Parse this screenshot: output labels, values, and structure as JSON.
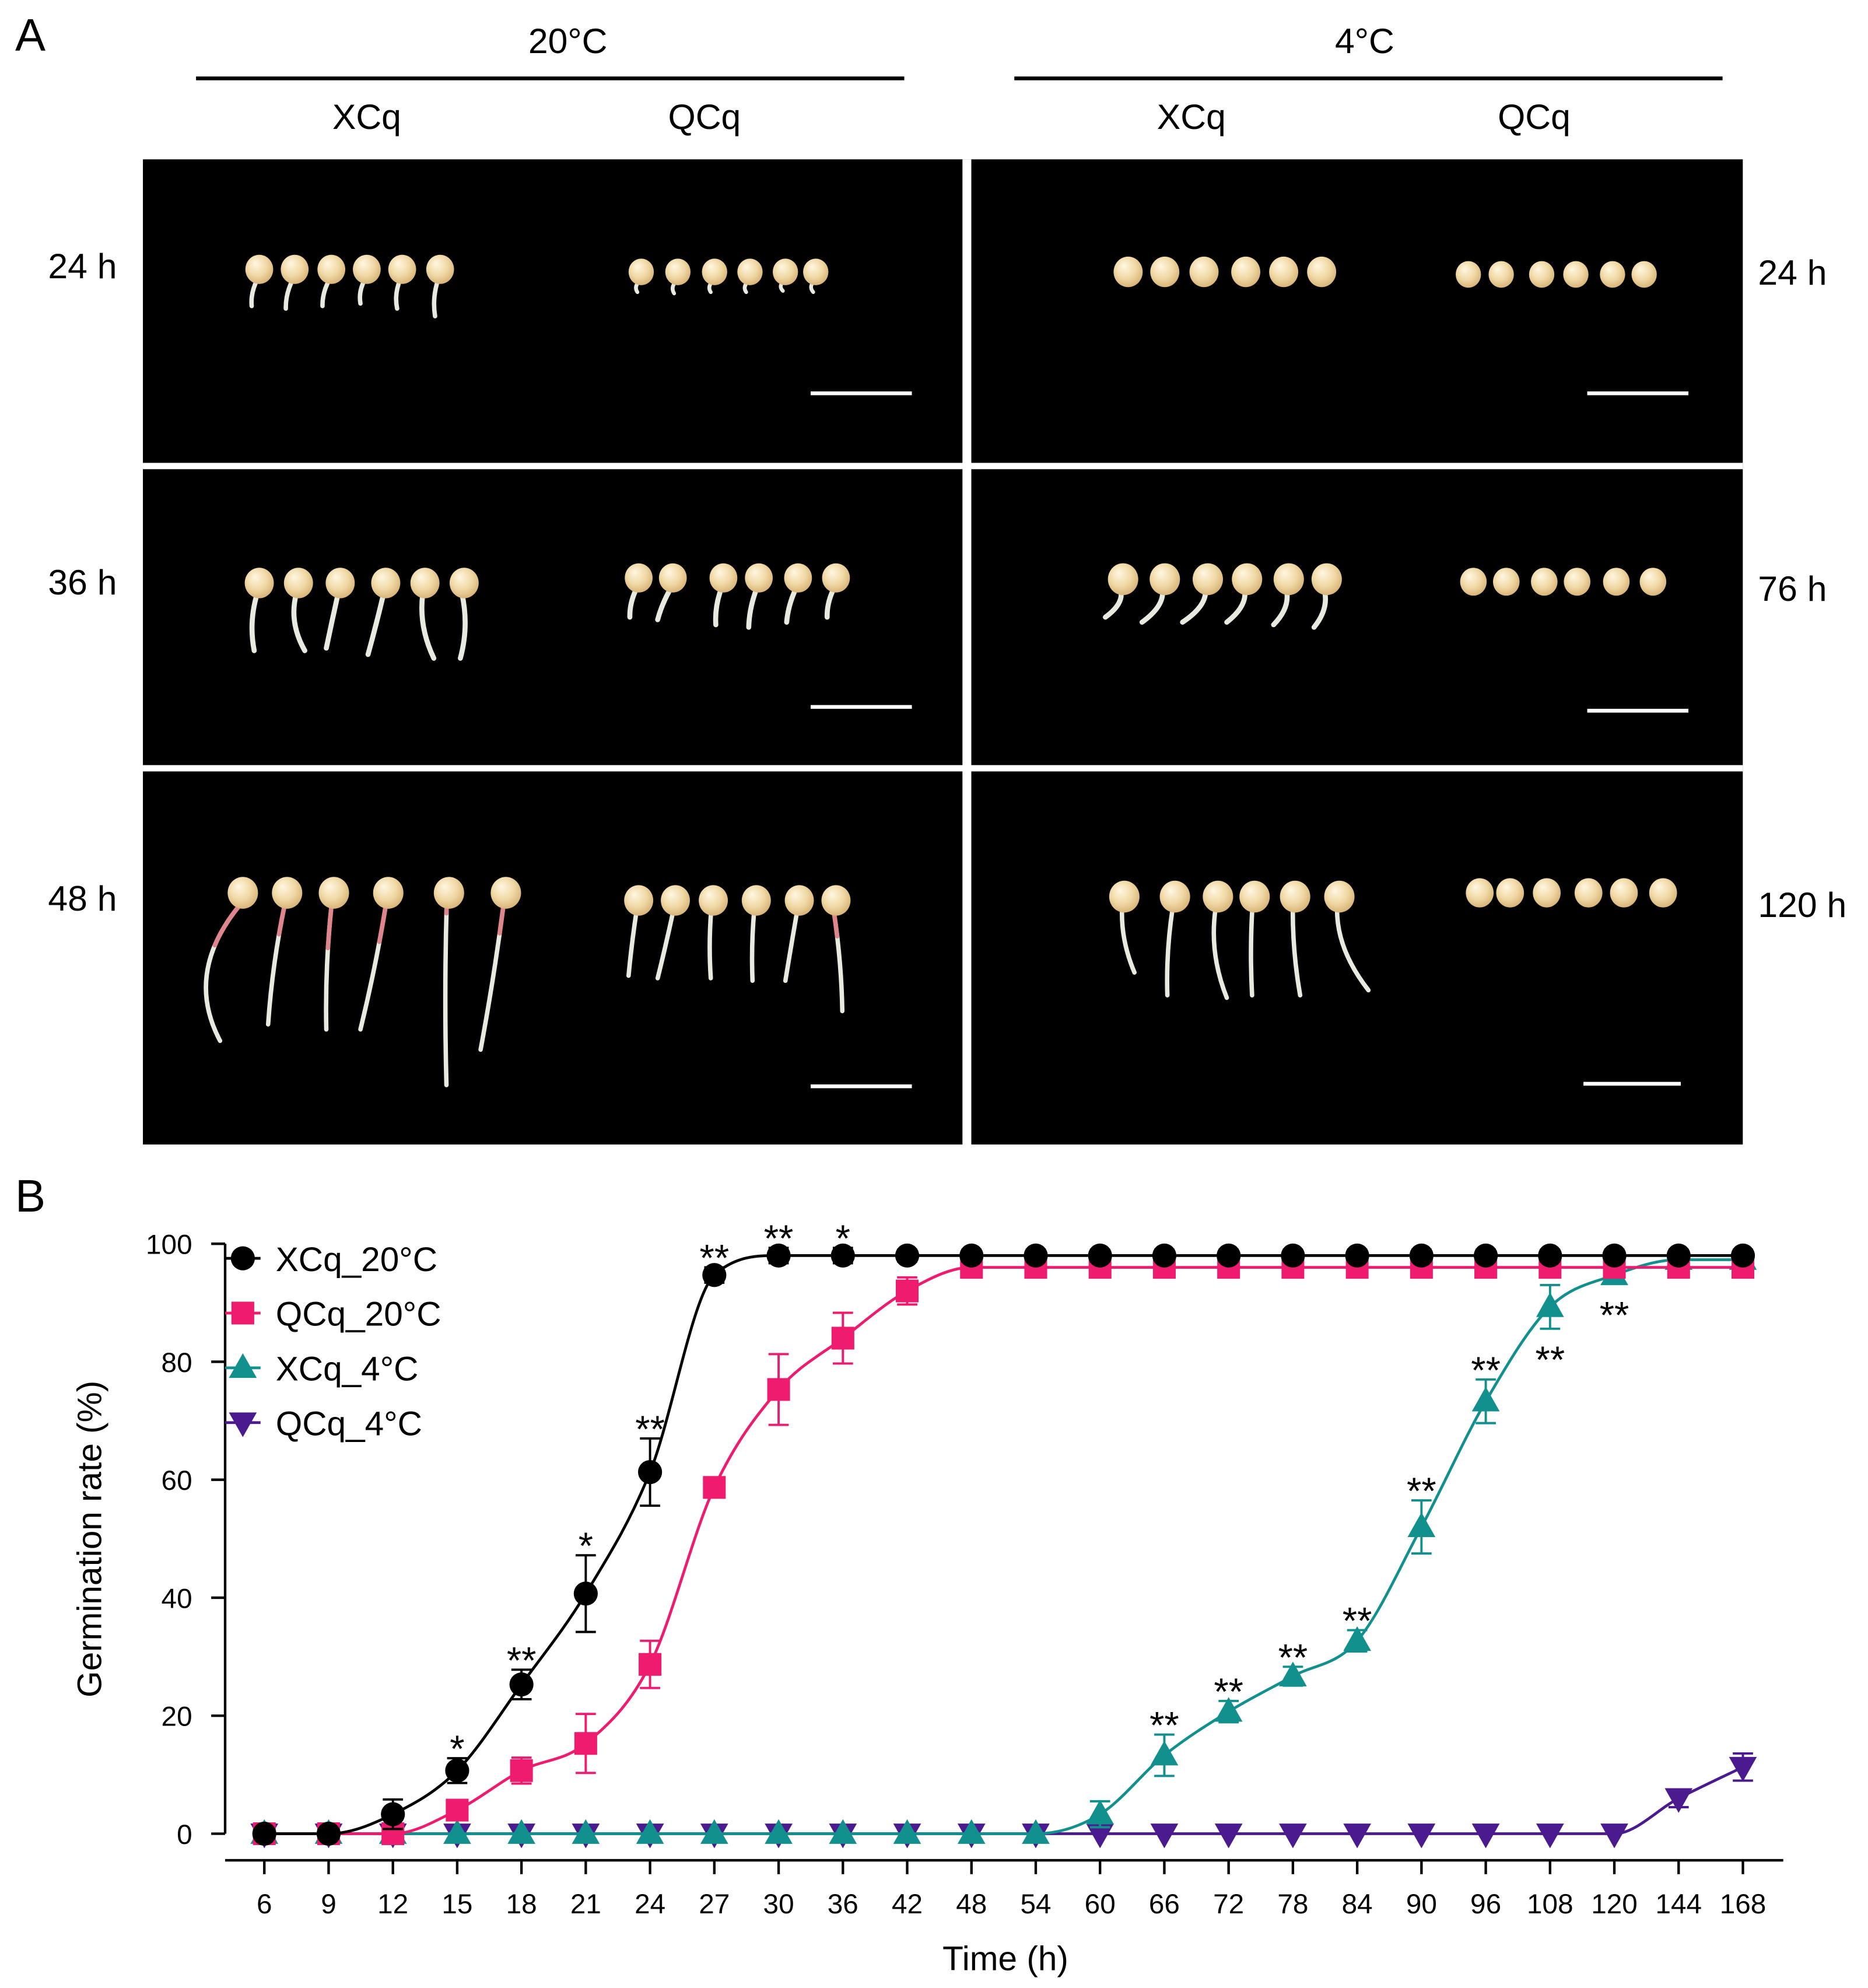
{
  "figure": {
    "panel_a": {
      "label": "A",
      "conditions": [
        {
          "temperature": "20°C",
          "cultivars": [
            "XCq",
            "QCq"
          ]
        },
        {
          "temperature": "4°C",
          "cultivars": [
            "XCq",
            "QCq"
          ]
        }
      ],
      "times_left": [
        "24 h",
        "36 h",
        "48 h"
      ],
      "times_right": [
        "24 h",
        "76 h",
        "120 h"
      ]
    },
    "panel_b": {
      "label": "B"
    }
  },
  "chart_data": {
    "type": "line",
    "xlabel": "Time (h)",
    "ylabel": "Germination rate (%)",
    "categories": [
      "6",
      "9",
      "12",
      "15",
      "18",
      "21",
      "24",
      "27",
      "30",
      "36",
      "42",
      "48",
      "54",
      "60",
      "66",
      "72",
      "78",
      "84",
      "90",
      "96",
      "108",
      "120",
      "144",
      "168"
    ],
    "ylim": [
      0,
      100
    ],
    "yticks": [
      0,
      20,
      40,
      60,
      80,
      100
    ],
    "grid": false,
    "legend": "top-left",
    "series": [
      {
        "name": "XCq_20°C",
        "color": "#000000",
        "marker": "circle",
        "values": [
          0,
          0,
          3.3,
          10.7,
          25.3,
          40.7,
          61.3,
          94.7,
          98,
          98,
          98,
          98,
          98,
          98,
          98,
          98,
          98,
          98,
          98,
          98,
          98,
          98,
          98,
          98
        ],
        "errors": [
          0,
          0,
          2.5,
          2.1,
          2.5,
          6.5,
          5.7,
          1.3,
          1.3,
          1.3,
          1.0,
          1.0,
          1.0,
          1.0,
          1.0,
          1.0,
          1.0,
          1.0,
          1.0,
          1.0,
          1.0,
          1.0,
          1.0,
          1.0
        ]
      },
      {
        "name": "QCq_20°C",
        "color": "#EE1B6E",
        "marker": "square",
        "values": [
          0,
          0,
          0,
          4,
          10.7,
          15.3,
          28.7,
          58.7,
          75.3,
          84,
          92,
          96,
          96,
          96,
          96,
          96,
          96,
          96,
          96,
          96,
          96,
          96,
          96,
          96
        ],
        "errors": [
          0,
          0,
          0,
          1.3,
          2.2,
          5.0,
          4.0,
          1.0,
          6.0,
          4.3,
          2.3,
          0.8,
          0.8,
          0.8,
          0.8,
          0.8,
          0.8,
          0.8,
          0.8,
          0.8,
          0.8,
          0.8,
          0.8,
          0.8
        ]
      },
      {
        "name": "XCq_4°C",
        "color": "#11908E",
        "marker": "triangle-up",
        "values": [
          0,
          0,
          0,
          0,
          0,
          0,
          0,
          0,
          0,
          0,
          0,
          0,
          0,
          3.3,
          13.3,
          20.7,
          26.7,
          32.7,
          52,
          73.3,
          89.3,
          94.7,
          97.3,
          97.3
        ],
        "errors": [
          0,
          0,
          0,
          0,
          0,
          0,
          0,
          0,
          0,
          0,
          0,
          0,
          0,
          2.2,
          3.5,
          1.8,
          1.6,
          1.8,
          4.5,
          3.7,
          3.7,
          1.5,
          1.0,
          1.0
        ]
      },
      {
        "name": "QCq_4°C",
        "color": "#4A1A8E",
        "marker": "triangle-down",
        "values": [
          0,
          0,
          0,
          0,
          0,
          0,
          0,
          0,
          0,
          0,
          0,
          0,
          0,
          0,
          0,
          0,
          0,
          0,
          0,
          0,
          0,
          0,
          6,
          11.3
        ],
        "errors": [
          0,
          0,
          0,
          0,
          0,
          0,
          0,
          0,
          0,
          0,
          0,
          0,
          0,
          0,
          0,
          0,
          0,
          0,
          0,
          0,
          0,
          0,
          1.5,
          2.3
        ]
      }
    ],
    "annotations": [
      {
        "category": "15",
        "series": "XCq_20°C",
        "text": "*",
        "position": "above"
      },
      {
        "category": "18",
        "series": "XCq_20°C",
        "text": "**",
        "position": "above"
      },
      {
        "category": "21",
        "series": "XCq_20°C",
        "text": "*",
        "position": "above"
      },
      {
        "category": "24",
        "series": "XCq_20°C",
        "text": "**",
        "position": "above"
      },
      {
        "category": "27",
        "series": "XCq_20°C",
        "text": "**",
        "position": "above"
      },
      {
        "category": "30",
        "series": "XCq_20°C",
        "text": "**",
        "position": "above"
      },
      {
        "category": "36",
        "series": "XCq_20°C",
        "text": "*",
        "position": "above"
      },
      {
        "category": "66",
        "series": "XCq_4°C",
        "text": "**",
        "position": "above"
      },
      {
        "category": "72",
        "series": "XCq_4°C",
        "text": "**",
        "position": "above"
      },
      {
        "category": "78",
        "series": "XCq_4°C",
        "text": "**",
        "position": "above"
      },
      {
        "category": "84",
        "series": "XCq_4°C",
        "text": "**",
        "position": "above"
      },
      {
        "category": "90",
        "series": "XCq_4°C",
        "text": "**",
        "position": "above"
      },
      {
        "category": "96",
        "series": "XCq_4°C",
        "text": "**",
        "position": "above"
      },
      {
        "category": "108",
        "series": "XCq_4°C",
        "text": "**",
        "position": "below"
      },
      {
        "category": "120",
        "series": "XCq_4°C",
        "text": "**",
        "position": "below"
      }
    ]
  }
}
